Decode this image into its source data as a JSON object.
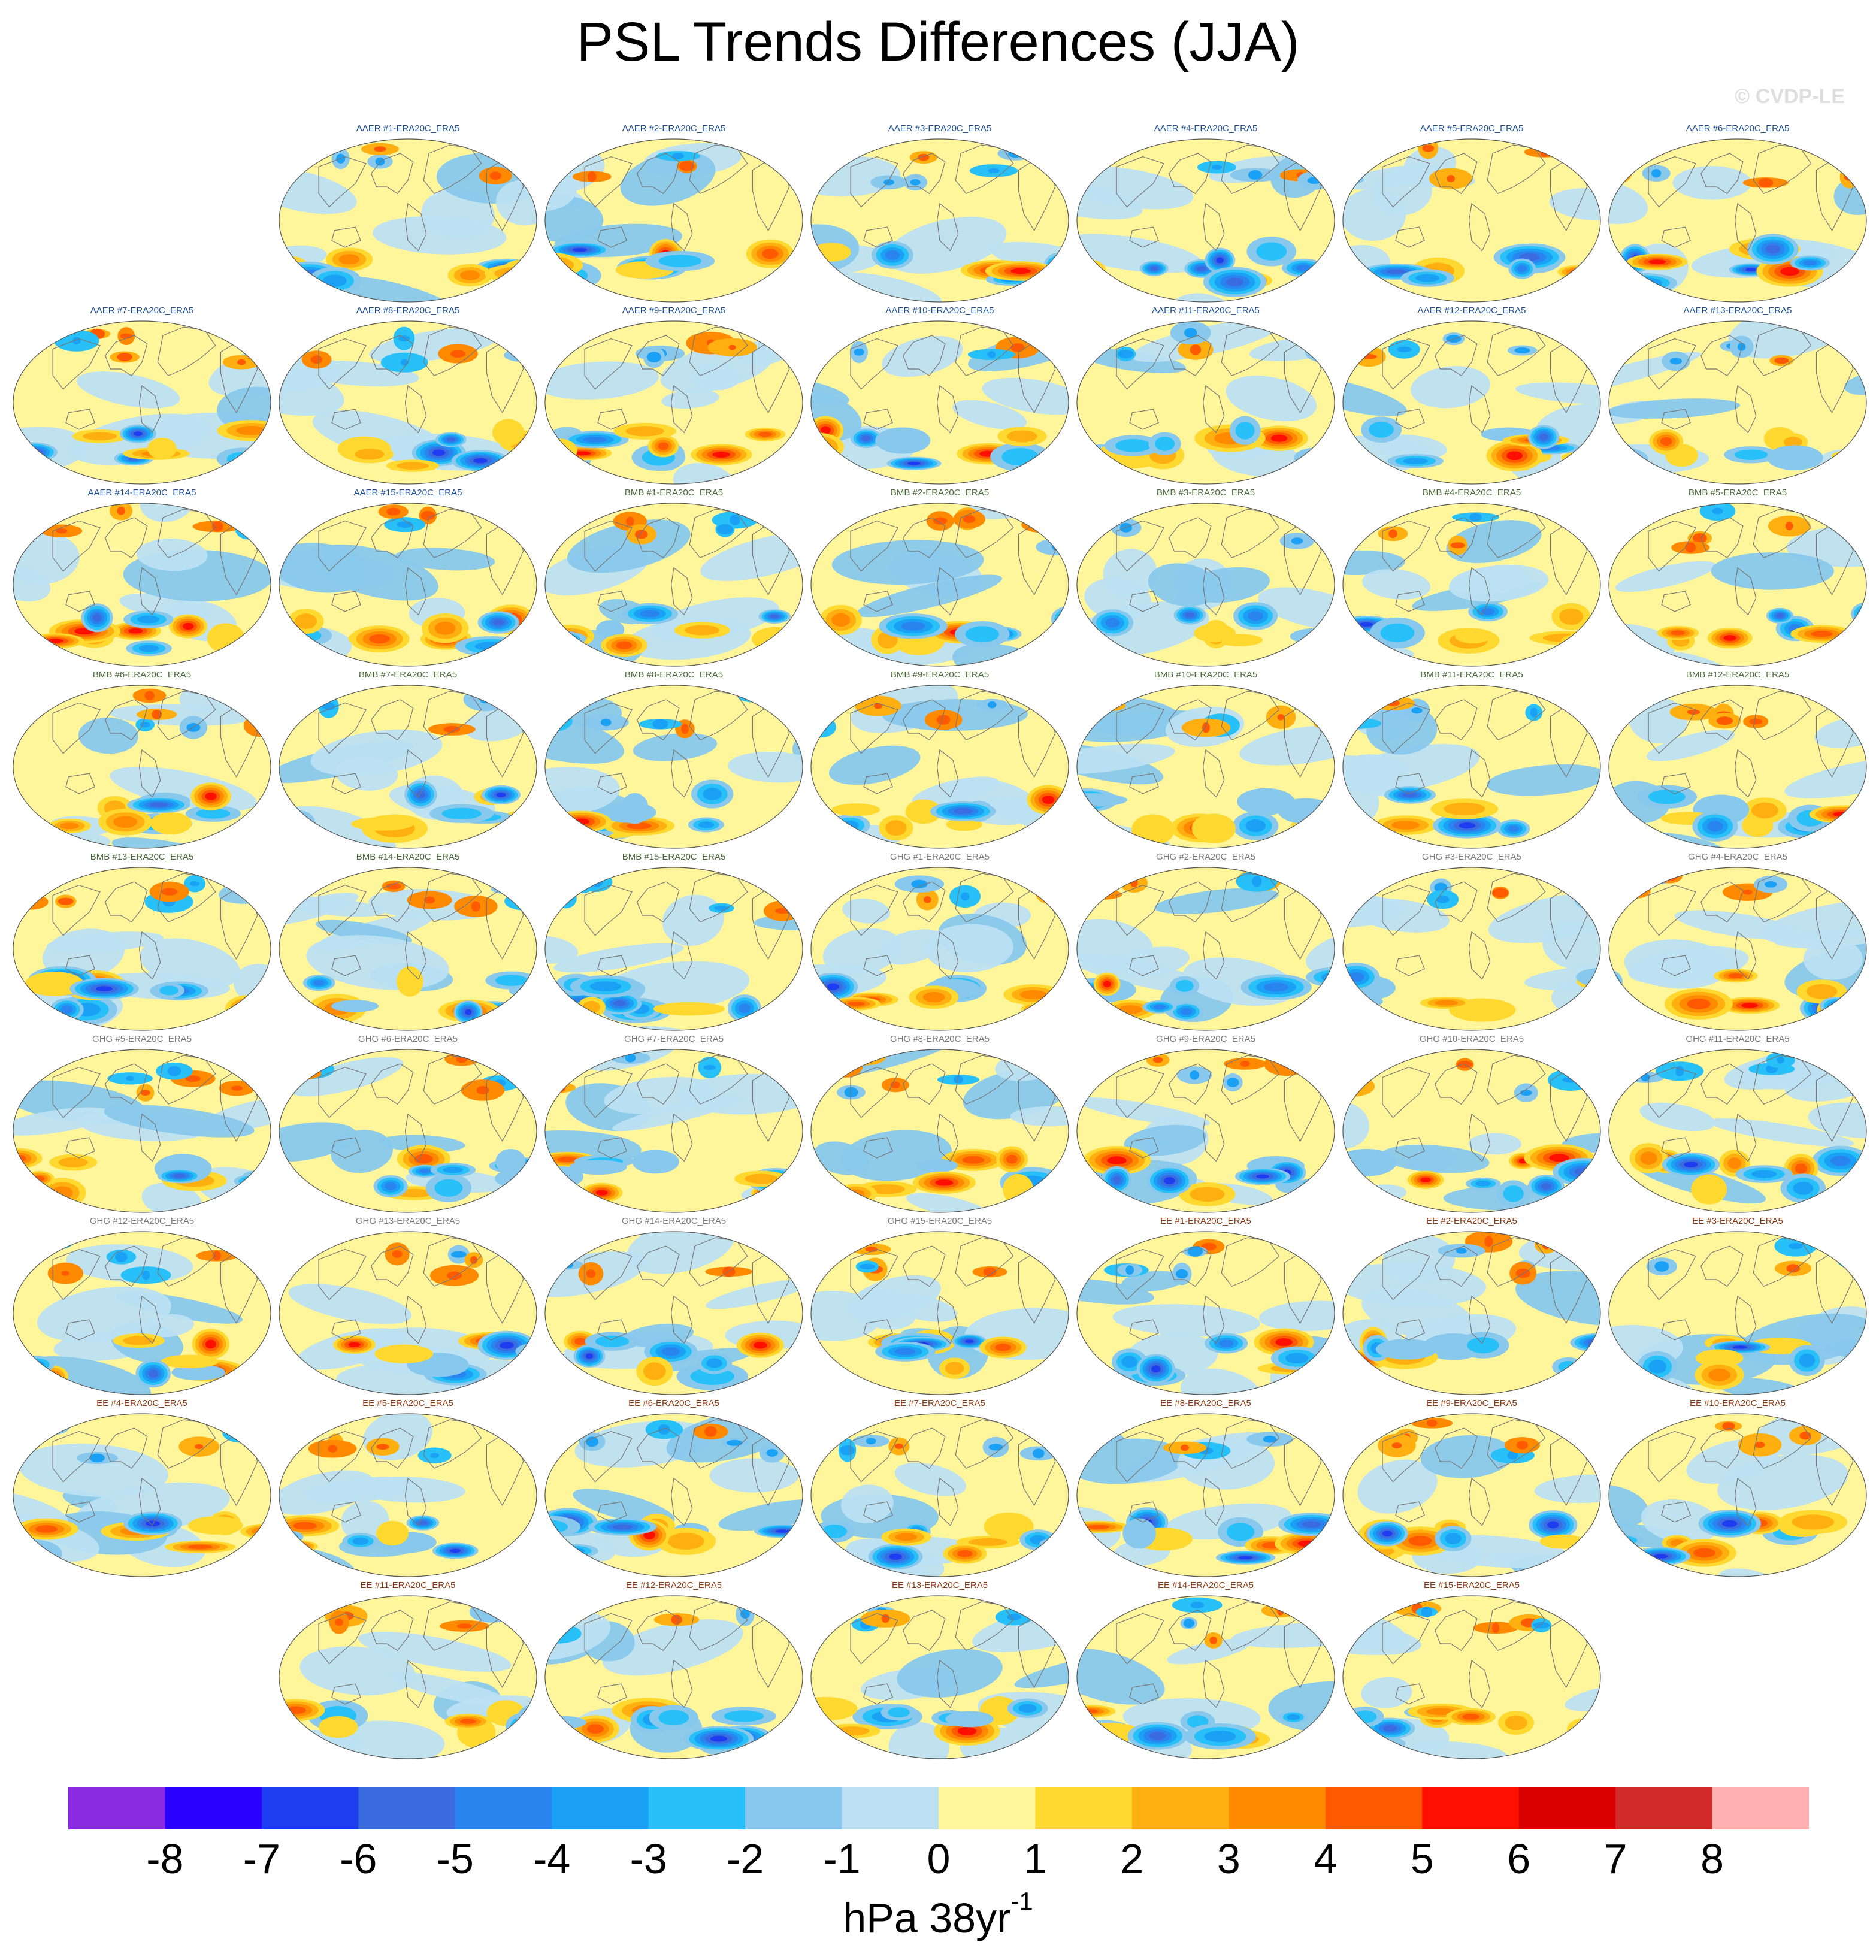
{
  "title": "PSL Trends Differences (JJA)",
  "watermark": "© CVDP-LE",
  "label_colors": {
    "AAER": "#1d4f91",
    "BMB": "#4a6a3a",
    "GHG": "#7a7a7a",
    "EE": "#8a3a12"
  },
  "colors": {
    "map_background": "#fff59a",
    "land_outline": "#777777",
    "globe_edge": "#555555"
  },
  "panels": [
    {
      "label": "AAER #1-ERA20C_ERA5",
      "group": "AAER",
      "row": 0,
      "col": 1
    },
    {
      "label": "AAER #2-ERA20C_ERA5",
      "group": "AAER",
      "row": 0,
      "col": 2
    },
    {
      "label": "AAER #3-ERA20C_ERA5",
      "group": "AAER",
      "row": 0,
      "col": 3
    },
    {
      "label": "AAER #4-ERA20C_ERA5",
      "group": "AAER",
      "row": 0,
      "col": 4
    },
    {
      "label": "AAER #5-ERA20C_ERA5",
      "group": "AAER",
      "row": 0,
      "col": 5
    },
    {
      "label": "AAER #6-ERA20C_ERA5",
      "group": "AAER",
      "row": 0,
      "col": 6
    },
    {
      "label": "AAER #7-ERA20C_ERA5",
      "group": "AAER",
      "row": 1,
      "col": 0
    },
    {
      "label": "AAER #8-ERA20C_ERA5",
      "group": "AAER",
      "row": 1,
      "col": 1
    },
    {
      "label": "AAER #9-ERA20C_ERA5",
      "group": "AAER",
      "row": 1,
      "col": 2
    },
    {
      "label": "AAER #10-ERA20C_ERA5",
      "group": "AAER",
      "row": 1,
      "col": 3
    },
    {
      "label": "AAER #11-ERA20C_ERA5",
      "group": "AAER",
      "row": 1,
      "col": 4
    },
    {
      "label": "AAER #12-ERA20C_ERA5",
      "group": "AAER",
      "row": 1,
      "col": 5
    },
    {
      "label": "AAER #13-ERA20C_ERA5",
      "group": "AAER",
      "row": 1,
      "col": 6
    },
    {
      "label": "AAER #14-ERA20C_ERA5",
      "group": "AAER",
      "row": 2,
      "col": 0
    },
    {
      "label": "AAER #15-ERA20C_ERA5",
      "group": "AAER",
      "row": 2,
      "col": 1
    },
    {
      "label": "BMB #1-ERA20C_ERA5",
      "group": "BMB",
      "row": 2,
      "col": 2
    },
    {
      "label": "BMB #2-ERA20C_ERA5",
      "group": "BMB",
      "row": 2,
      "col": 3
    },
    {
      "label": "BMB #3-ERA20C_ERA5",
      "group": "BMB",
      "row": 2,
      "col": 4
    },
    {
      "label": "BMB #4-ERA20C_ERA5",
      "group": "BMB",
      "row": 2,
      "col": 5
    },
    {
      "label": "BMB #5-ERA20C_ERA5",
      "group": "BMB",
      "row": 2,
      "col": 6
    },
    {
      "label": "BMB #6-ERA20C_ERA5",
      "group": "BMB",
      "row": 3,
      "col": 0
    },
    {
      "label": "BMB #7-ERA20C_ERA5",
      "group": "BMB",
      "row": 3,
      "col": 1
    },
    {
      "label": "BMB #8-ERA20C_ERA5",
      "group": "BMB",
      "row": 3,
      "col": 2
    },
    {
      "label": "BMB #9-ERA20C_ERA5",
      "group": "BMB",
      "row": 3,
      "col": 3
    },
    {
      "label": "BMB #10-ERA20C_ERA5",
      "group": "BMB",
      "row": 3,
      "col": 4
    },
    {
      "label": "BMB #11-ERA20C_ERA5",
      "group": "BMB",
      "row": 3,
      "col": 5
    },
    {
      "label": "BMB #12-ERA20C_ERA5",
      "group": "BMB",
      "row": 3,
      "col": 6
    },
    {
      "label": "BMB #13-ERA20C_ERA5",
      "group": "BMB",
      "row": 4,
      "col": 0
    },
    {
      "label": "BMB #14-ERA20C_ERA5",
      "group": "BMB",
      "row": 4,
      "col": 1
    },
    {
      "label": "BMB #15-ERA20C_ERA5",
      "group": "BMB",
      "row": 4,
      "col": 2
    },
    {
      "label": "GHG #1-ERA20C_ERA5",
      "group": "GHG",
      "row": 4,
      "col": 3
    },
    {
      "label": "GHG #2-ERA20C_ERA5",
      "group": "GHG",
      "row": 4,
      "col": 4
    },
    {
      "label": "GHG #3-ERA20C_ERA5",
      "group": "GHG",
      "row": 4,
      "col": 5
    },
    {
      "label": "GHG #4-ERA20C_ERA5",
      "group": "GHG",
      "row": 4,
      "col": 6
    },
    {
      "label": "GHG #5-ERA20C_ERA5",
      "group": "GHG",
      "row": 5,
      "col": 0
    },
    {
      "label": "GHG #6-ERA20C_ERA5",
      "group": "GHG",
      "row": 5,
      "col": 1
    },
    {
      "label": "GHG #7-ERA20C_ERA5",
      "group": "GHG",
      "row": 5,
      "col": 2
    },
    {
      "label": "GHG #8-ERA20C_ERA5",
      "group": "GHG",
      "row": 5,
      "col": 3
    },
    {
      "label": "GHG #9-ERA20C_ERA5",
      "group": "GHG",
      "row": 5,
      "col": 4
    },
    {
      "label": "GHG #10-ERA20C_ERA5",
      "group": "GHG",
      "row": 5,
      "col": 5
    },
    {
      "label": "GHG #11-ERA20C_ERA5",
      "group": "GHG",
      "row": 5,
      "col": 6
    },
    {
      "label": "GHG #12-ERA20C_ERA5",
      "group": "GHG",
      "row": 6,
      "col": 0
    },
    {
      "label": "GHG #13-ERA20C_ERA5",
      "group": "GHG",
      "row": 6,
      "col": 1
    },
    {
      "label": "GHG #14-ERA20C_ERA5",
      "group": "GHG",
      "row": 6,
      "col": 2
    },
    {
      "label": "GHG #15-ERA20C_ERA5",
      "group": "GHG",
      "row": 6,
      "col": 3
    },
    {
      "label": "EE #1-ERA20C_ERA5",
      "group": "EE",
      "row": 6,
      "col": 4
    },
    {
      "label": "EE #2-ERA20C_ERA5",
      "group": "EE",
      "row": 6,
      "col": 5
    },
    {
      "label": "EE #3-ERA20C_ERA5",
      "group": "EE",
      "row": 6,
      "col": 6
    },
    {
      "label": "EE #4-ERA20C_ERA5",
      "group": "EE",
      "row": 7,
      "col": 0
    },
    {
      "label": "EE #5-ERA20C_ERA5",
      "group": "EE",
      "row": 7,
      "col": 1
    },
    {
      "label": "EE #6-ERA20C_ERA5",
      "group": "EE",
      "row": 7,
      "col": 2
    },
    {
      "label": "EE #7-ERA20C_ERA5",
      "group": "EE",
      "row": 7,
      "col": 3
    },
    {
      "label": "EE #8-ERA20C_ERA5",
      "group": "EE",
      "row": 7,
      "col": 4
    },
    {
      "label": "EE #9-ERA20C_ERA5",
      "group": "EE",
      "row": 7,
      "col": 5
    },
    {
      "label": "EE #10-ERA20C_ERA5",
      "group": "EE",
      "row": 7,
      "col": 6
    },
    {
      "label": "EE #11-ERA20C_ERA5",
      "group": "EE",
      "row": 8,
      "col": 1
    },
    {
      "label": "EE #12-ERA20C_ERA5",
      "group": "EE",
      "row": 8,
      "col": 2
    },
    {
      "label": "EE #13-ERA20C_ERA5",
      "group": "EE",
      "row": 8,
      "col": 3
    },
    {
      "label": "EE #14-ERA20C_ERA5",
      "group": "EE",
      "row": 8,
      "col": 4
    },
    {
      "label": "EE #15-ERA20C_ERA5",
      "group": "EE",
      "row": 8,
      "col": 5
    }
  ],
  "colorbar": {
    "colors": [
      "#8a2be2",
      "#2a00ff",
      "#1e3cf0",
      "#3a6ce0",
      "#2a84f0",
      "#1aa0f4",
      "#28c0f8",
      "#88c8ec",
      "#bce0f2",
      "#fff59a",
      "#ffd830",
      "#ffb010",
      "#ff8a00",
      "#ff5a00",
      "#ff0f00",
      "#d80000",
      "#d22a2a",
      "#ffb0b0"
    ],
    "ticks": [
      "-8",
      "-7",
      "-6",
      "-5",
      "-4",
      "-3",
      "-2",
      "-1",
      "0",
      "1",
      "2",
      "3",
      "4",
      "5",
      "6",
      "7",
      "8"
    ]
  },
  "units": {
    "base": "hPa 38yr",
    "exponent": "-1"
  }
}
